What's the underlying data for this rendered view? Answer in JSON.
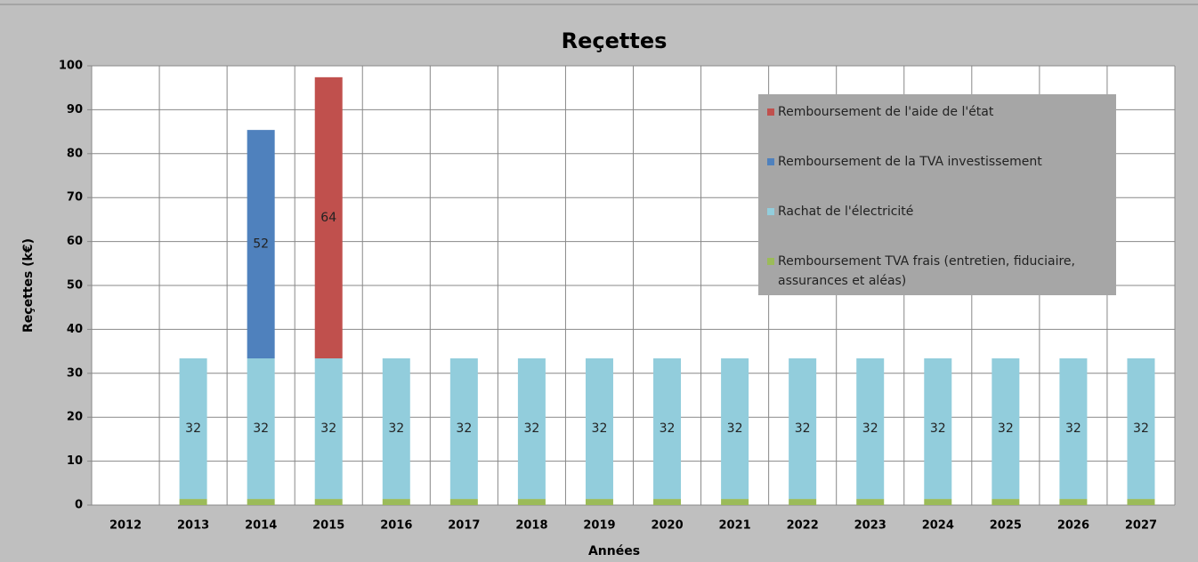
{
  "chart_data": {
    "type": "bar",
    "stacked": true,
    "title": "Reçettes",
    "xlabel": "Années",
    "ylabel": "Reçettes (k€)",
    "categories": [
      "2012",
      "2013",
      "2014",
      "2015",
      "2016",
      "2017",
      "2018",
      "2019",
      "2020",
      "2021",
      "2022",
      "2023",
      "2024",
      "2025",
      "2026",
      "2027"
    ],
    "series": [
      {
        "name": "Remboursement TVA frais (entretien, fiduciaire, assurances et aléas)",
        "color": "#9bbb59",
        "values": [
          null,
          1.4,
          1.4,
          1.4,
          1.4,
          1.4,
          1.4,
          1.4,
          1.4,
          1.4,
          1.4,
          1.4,
          1.4,
          1.4,
          1.4,
          1.4
        ],
        "value_labels": [
          null,
          "1,4",
          "1,4",
          "1,4",
          "1,4",
          "1,4",
          "1,4",
          "1,4",
          "1,4",
          "1,4",
          "1,4",
          "1,4",
          "1,4",
          "1,4",
          "1,4",
          "1,4"
        ]
      },
      {
        "name": "Rachat de l'électricité",
        "color": "#92cddc",
        "values": [
          null,
          32,
          32,
          32,
          32,
          32,
          32,
          32,
          32,
          32,
          32,
          32,
          32,
          32,
          32,
          32
        ]
      },
      {
        "name": "Remboursement de la TVA investissement",
        "color": "#4f81bd",
        "values": [
          null,
          null,
          52,
          null,
          null,
          null,
          null,
          null,
          null,
          null,
          null,
          null,
          null,
          null,
          null,
          null
        ]
      },
      {
        "name": "Remboursement de l'aide de l'état",
        "color": "#c0504d",
        "values": [
          null,
          null,
          null,
          64,
          null,
          null,
          null,
          null,
          null,
          null,
          null,
          null,
          null,
          null,
          null,
          null
        ]
      }
    ],
    "ylim": [
      0,
      100
    ],
    "yticks": [
      0,
      10,
      20,
      30,
      40,
      50,
      60,
      70,
      80,
      90,
      100
    ],
    "grid": true,
    "legend": "upper right"
  }
}
